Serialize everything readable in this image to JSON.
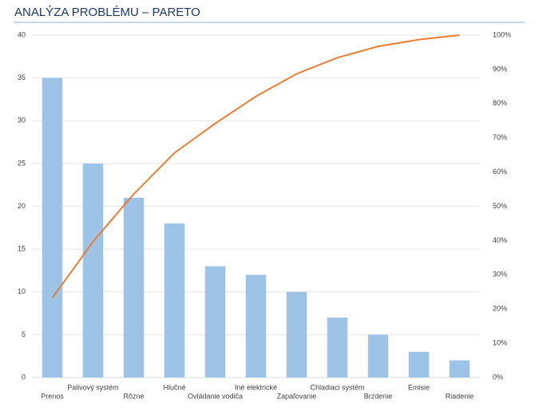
{
  "chart_data": {
    "type": "pareto",
    "title": "ANALÝZA PROBLÉMU – PARETO",
    "categories": [
      "Prenos",
      "Palivový systém",
      "Rôzne",
      "Hlučné",
      "Ovládanie vodiča",
      "Iné elektrické",
      "Zapaľovanie",
      "Chladiaci systém",
      "Brzdenie",
      "Emisie",
      "Riadenie"
    ],
    "series": [
      {
        "type": "bar",
        "color": "#9dc3e6",
        "values": [
          35,
          25,
          21,
          18,
          13,
          12,
          10,
          7,
          5,
          3,
          2
        ]
      },
      {
        "type": "line",
        "axis": "y2",
        "color": "#ed7d31",
        "values": [
          23.2,
          39.7,
          53.6,
          65.6,
          74.2,
          82.1,
          88.7,
          93.4,
          96.7,
          98.7,
          100
        ]
      }
    ],
    "ylim": [
      0,
      40
    ],
    "yticks": [
      0,
      5,
      10,
      15,
      20,
      25,
      30,
      35,
      40
    ],
    "y2lim": [
      0,
      100
    ],
    "y2ticks": [
      {
        "value": 0,
        "label": "0%"
      },
      {
        "value": 10,
        "label": "10%"
      },
      {
        "value": 20,
        "label": "20%"
      },
      {
        "value": 30,
        "label": "30%"
      },
      {
        "value": 40,
        "label": "40%"
      },
      {
        "value": 50,
        "label": "50%"
      },
      {
        "value": 60,
        "label": "60%"
      },
      {
        "value": 70,
        "label": "70%"
      },
      {
        "value": 80,
        "label": "80%"
      },
      {
        "value": 90,
        "label": "90%"
      },
      {
        "value": 100,
        "label": "100%"
      }
    ],
    "grid": true
  }
}
